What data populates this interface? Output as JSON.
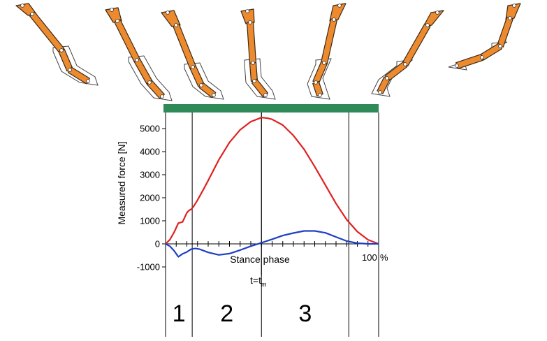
{
  "chart_data": {
    "type": "line",
    "ylabel": "Measured force [N]",
    "xlabel": "Stance phase",
    "x_end_label": "100",
    "x_unit": "%",
    "marker_label_main": "t=t",
    "marker_label_sub": "m",
    "xlim": [
      0,
      100
    ],
    "ylim": [
      -1000,
      5500
    ],
    "yticks": [
      5000,
      4000,
      3000,
      2000,
      1000,
      0,
      -1000
    ],
    "x_minor_ticks": [
      5,
      10,
      15,
      20,
      25,
      30,
      35,
      40,
      45,
      50,
      55,
      60,
      65,
      70,
      75,
      80,
      85,
      90,
      95
    ],
    "phase_boundaries": [
      0,
      12.5,
      45,
      86,
      100
    ],
    "phase_labels": [
      "1",
      "2",
      "3"
    ],
    "phase_bar_color": "#2e8b57",
    "series": [
      {
        "color": "#e02020",
        "x": [
          0,
          2,
          4,
          6,
          8,
          9,
          10,
          11,
          12,
          13,
          15,
          18,
          20,
          25,
          30,
          35,
          40,
          45,
          48,
          50,
          55,
          60,
          65,
          70,
          75,
          80,
          85,
          90,
          95,
          100
        ],
        "y": [
          0,
          180,
          500,
          900,
          950,
          1150,
          1350,
          1450,
          1500,
          1600,
          1900,
          2400,
          2750,
          3650,
          4400,
          4950,
          5300,
          5480,
          5450,
          5400,
          5150,
          4700,
          4100,
          3350,
          2550,
          1750,
          1050,
          530,
          180,
          0
        ]
      },
      {
        "color": "#1e3fc4",
        "x": [
          0,
          2,
          4,
          6,
          8,
          10,
          12,
          14,
          16,
          20,
          25,
          30,
          35,
          40,
          45,
          50,
          55,
          60,
          65,
          70,
          75,
          80,
          85,
          90,
          95,
          100
        ],
        "y": [
          0,
          -100,
          -300,
          -560,
          -430,
          -350,
          -230,
          -200,
          -230,
          -370,
          -480,
          -420,
          -270,
          -100,
          50,
          200,
          360,
          470,
          560,
          560,
          480,
          300,
          120,
          30,
          0,
          0
        ]
      }
    ]
  },
  "illustration": {
    "label": "horse forelimb stance poses",
    "bone_color": "#ec8a2d",
    "pose_count": 7
  }
}
